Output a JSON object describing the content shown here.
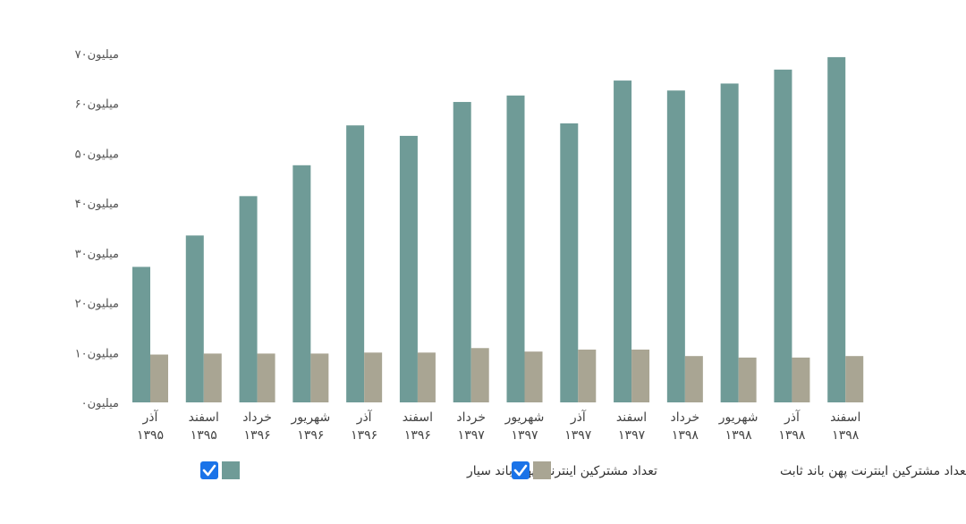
{
  "chart_data": {
    "type": "bar",
    "categories": [
      {
        "month": "آذر",
        "year": "۱۳۹۵"
      },
      {
        "month": "اسفند",
        "year": "۱۳۹۵"
      },
      {
        "month": "خرداد",
        "year": "۱۳۹۶"
      },
      {
        "month": "شهریور",
        "year": "۱۳۹۶"
      },
      {
        "month": "آذر",
        "year": "۱۳۹۶"
      },
      {
        "month": "اسفند",
        "year": "۱۳۹۶"
      },
      {
        "month": "خرداد",
        "year": "۱۳۹۷"
      },
      {
        "month": "شهریور",
        "year": "۱۳۹۷"
      },
      {
        "month": "آذر",
        "year": "۱۳۹۷"
      },
      {
        "month": "اسفند",
        "year": "۱۳۹۷"
      },
      {
        "month": "خرداد",
        "year": "۱۳۹۸"
      },
      {
        "month": "شهریور",
        "year": "۱۳۹۸"
      },
      {
        "month": "آذر",
        "year": "۱۳۹۸"
      },
      {
        "month": "اسفند",
        "year": "۱۳۹۸"
      }
    ],
    "series": [
      {
        "name": "تعداد مشترکین اینترنت پهن باند سیار",
        "color": "#6f9b97",
        "values": [
          27.2,
          33.5,
          41.4,
          47.6,
          55.6,
          53.5,
          60.3,
          61.6,
          56.0,
          64.6,
          62.6,
          64.0,
          66.8,
          69.3
        ]
      },
      {
        "name": "تعداد مشترکین اینترنت پهن باند ثابت",
        "color": "#a9a593",
        "values": [
          9.6,
          9.8,
          9.8,
          9.8,
          10.0,
          10.0,
          10.9,
          10.2,
          10.6,
          10.6,
          9.3,
          9.0,
          9.0,
          9.3
        ]
      }
    ],
    "yticks": [
      {
        "value": 0,
        "label": "۰میلیون"
      },
      {
        "value": 10,
        "label": "۱۰میلیون"
      },
      {
        "value": 20,
        "label": "۲۰میلیون"
      },
      {
        "value": 30,
        "label": "۳۰میلیون"
      },
      {
        "value": 40,
        "label": "۴۰میلیون"
      },
      {
        "value": 50,
        "label": "۵۰میلیون"
      },
      {
        "value": 60,
        "label": "۶۰میلیون"
      },
      {
        "value": 70,
        "label": "۷۰میلیون"
      }
    ],
    "ylim": [
      0,
      70
    ],
    "grid": false,
    "legend": "bottom",
    "legend_checkbox_color": "#1a73e8"
  }
}
